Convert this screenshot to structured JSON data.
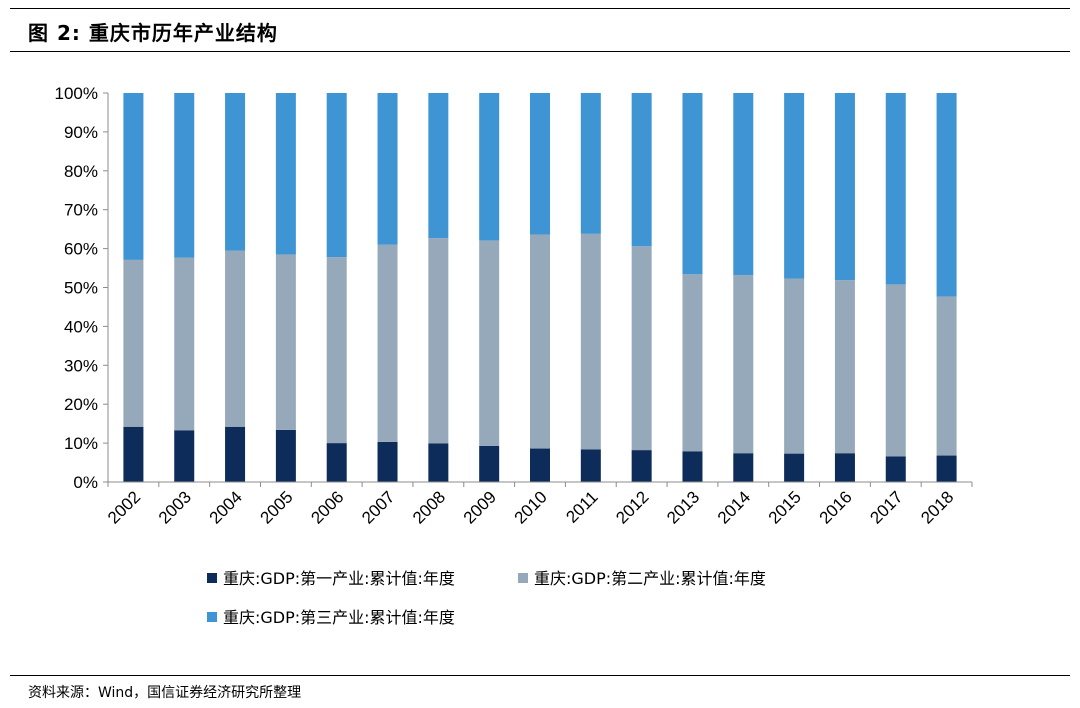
{
  "header": {
    "title": "图 2:  重庆市历年产业结构"
  },
  "footer": {
    "source": "资料来源：Wind，国信证券经济研究所整理"
  },
  "colors": {
    "series1": "#0d2c5a",
    "series2": "#96a9bb",
    "series3": "#3f95d3",
    "axis": "#8c8c8c"
  },
  "chart_data": {
    "type": "bar",
    "stacked": true,
    "categories": [
      "2002",
      "2003",
      "2004",
      "2005",
      "2006",
      "2007",
      "2008",
      "2009",
      "2010",
      "2011",
      "2012",
      "2013",
      "2014",
      "2015",
      "2016",
      "2017",
      "2018"
    ],
    "series": [
      {
        "name": "重庆:GDP:第一产业:累计值:年度",
        "values": [
          14.2,
          13.3,
          14.2,
          13.4,
          10.0,
          10.3,
          9.9,
          9.3,
          8.6,
          8.4,
          8.2,
          7.9,
          7.4,
          7.3,
          7.4,
          6.6,
          6.8
        ]
      },
      {
        "name": "重庆:GDP:第二产业:累计值:年度",
        "values": [
          42.9,
          44.4,
          45.3,
          45.1,
          47.8,
          50.7,
          52.8,
          52.8,
          55.0,
          55.4,
          52.4,
          45.5,
          45.8,
          45.0,
          44.5,
          44.2,
          40.9
        ]
      },
      {
        "name": "重庆:GDP:第三产业:累计值:年度",
        "values": [
          42.9,
          42.3,
          40.5,
          41.5,
          42.2,
          39.0,
          37.3,
          37.9,
          36.4,
          36.2,
          39.4,
          46.6,
          46.8,
          47.7,
          48.1,
          49.2,
          52.3
        ]
      }
    ],
    "ylim": [
      0,
      100
    ],
    "yticks": [
      "0%",
      "10%",
      "20%",
      "30%",
      "40%",
      "50%",
      "60%",
      "70%",
      "80%",
      "90%",
      "100%"
    ],
    "grid": false,
    "legend_position": "bottom"
  }
}
